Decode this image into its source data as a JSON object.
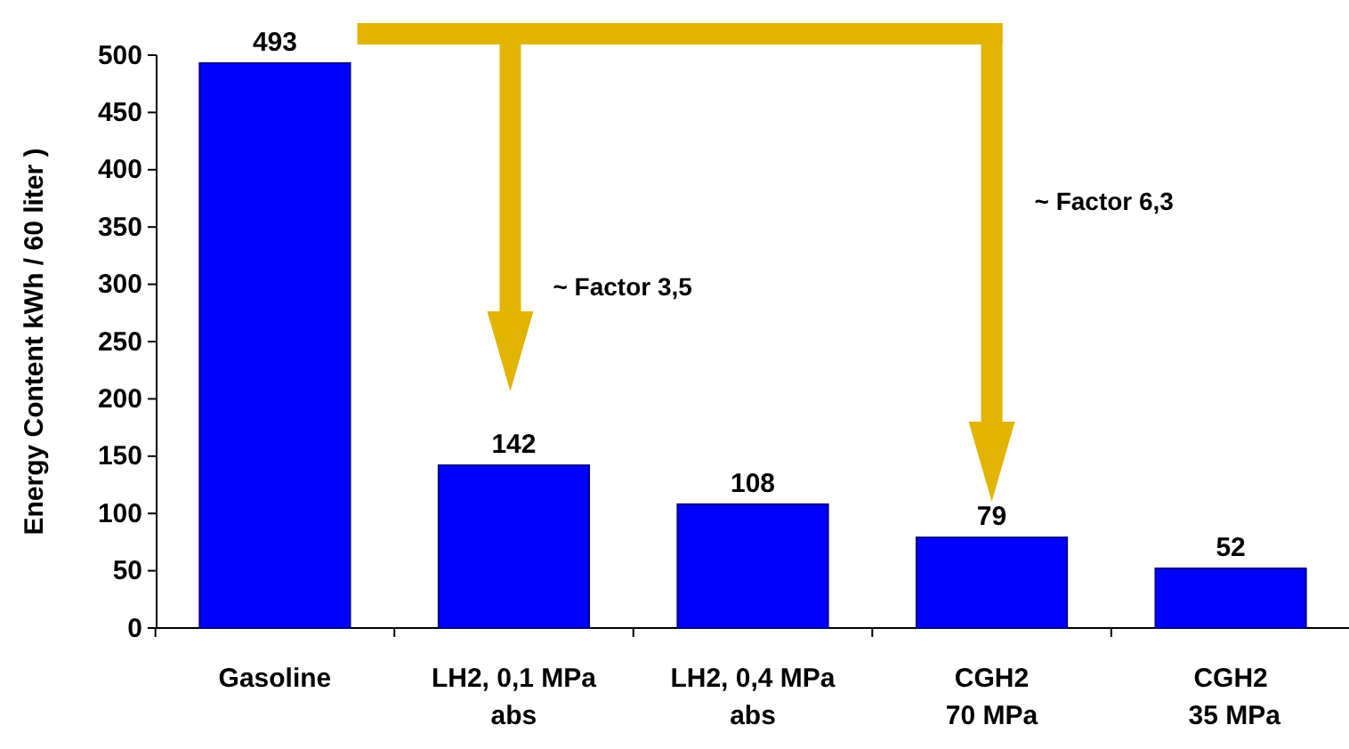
{
  "chart_data": {
    "type": "bar",
    "ylabel": "Energy Content kWh / 60 liter )",
    "categories": [
      "Gasoline",
      "LH2, 0,1 MPa\nabs",
      "LH2, 0,4 MPa\nabs",
      "CGH2\n70 MPa",
      "CGH2\n 35 MPa"
    ],
    "values": [
      493,
      142,
      108,
      79,
      52
    ],
    "color": "#0000ff",
    "ylim": [
      0,
      500
    ],
    "yticks": [
      0,
      50,
      100,
      150,
      200,
      250,
      300,
      350,
      400,
      450,
      500
    ],
    "data_labels": true,
    "annotations": [
      "~ Factor 3,5",
      "~ Factor 6,3"
    ]
  }
}
